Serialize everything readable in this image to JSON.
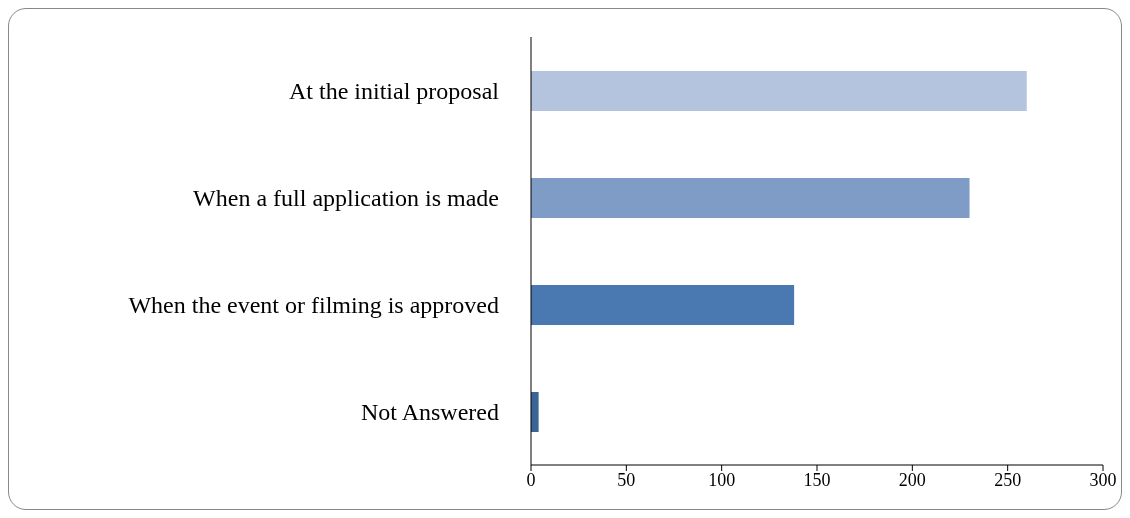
{
  "chart_data": {
    "type": "bar",
    "orientation": "horizontal",
    "categories": [
      "At the initial proposal",
      "When a full application is made",
      "When the event or filming is approved",
      "Not Answered"
    ],
    "values": [
      260,
      230,
      138,
      4
    ],
    "colors": [
      "#b4c3de",
      "#7f9cc7",
      "#4a78b0",
      "#3b6497"
    ],
    "xlim": [
      0,
      300
    ],
    "xticks": [
      0,
      50,
      100,
      150,
      200,
      250,
      300
    ],
    "grid": false
  }
}
